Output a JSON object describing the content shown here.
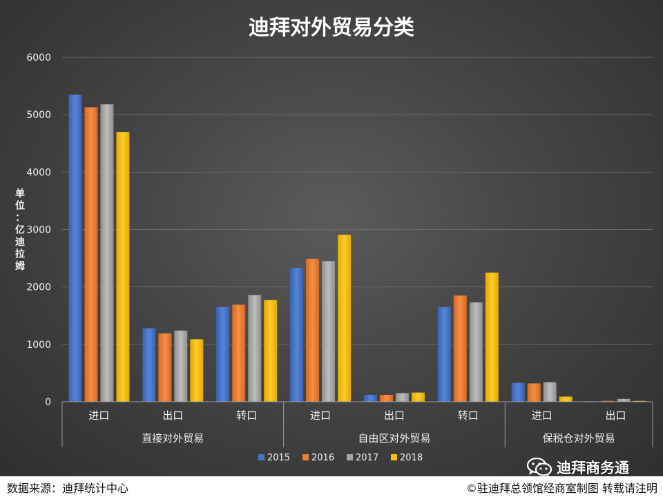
{
  "chart_data": {
    "type": "bar",
    "title": "迪拜对外贸易分类",
    "ylabel": "单位：亿迪拉姆",
    "ylim": [
      0,
      6000
    ],
    "yticks": [
      0,
      1000,
      2000,
      3000,
      4000,
      5000,
      6000
    ],
    "grid": true,
    "legend_position": "bottom",
    "groups": [
      {
        "label": "直接对外贸易",
        "categories": [
          "进口",
          "出口",
          "转口"
        ]
      },
      {
        "label": "自由区对外贸易",
        "categories": [
          "进口",
          "出口",
          "转口"
        ]
      },
      {
        "label": "保税仓对外贸易",
        "categories": [
          "进口",
          "出口"
        ]
      }
    ],
    "categories": [
      "进口",
      "出口",
      "转口",
      "进口",
      "出口",
      "转口",
      "进口",
      "出口"
    ],
    "series": [
      {
        "name": "2015",
        "color": "#4472C4",
        "values": [
          5350,
          1280,
          1650,
          2330,
          120,
          1650,
          330,
          10
        ]
      },
      {
        "name": "2016",
        "color": "#ED7D31",
        "values": [
          5130,
          1190,
          1690,
          2490,
          120,
          1850,
          320,
          15
        ]
      },
      {
        "name": "2017",
        "color": "#A5A5A5",
        "values": [
          5180,
          1240,
          1860,
          2450,
          150,
          1730,
          340,
          50
        ]
      },
      {
        "name": "2018",
        "color": "#FFC000",
        "values": [
          4700,
          1090,
          1770,
          2910,
          160,
          2250,
          90,
          15
        ]
      }
    ]
  },
  "footer": {
    "source": "数据来源：迪拜统计中心",
    "credit": "©驻迪拜总领馆经商室制图 转载请注明"
  },
  "watermark": {
    "text": "迪拜商务通",
    "icon": "wechat-icon"
  }
}
